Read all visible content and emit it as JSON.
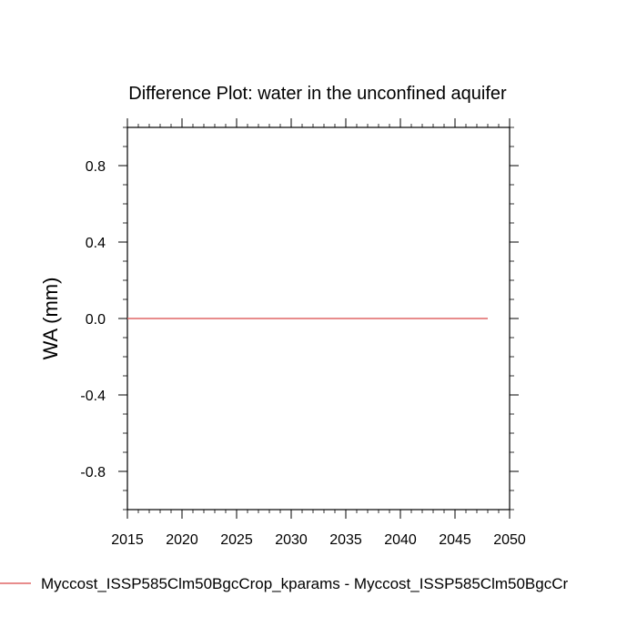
{
  "chart_data": {
    "type": "line",
    "title": "Difference Plot: water in the unconfined aquifer",
    "xlabel": "",
    "ylabel": "WA  (mm)",
    "xlim": [
      2015,
      2050
    ],
    "ylim": [
      -1.0,
      1.0
    ],
    "x_ticks": [
      2015,
      2020,
      2025,
      2030,
      2035,
      2040,
      2045,
      2050
    ],
    "y_ticks": [
      0.8,
      0.4,
      0.0,
      -0.4,
      -0.8
    ],
    "x_tick_labels": [
      "2015",
      "2020",
      "2025",
      "2030",
      "2035",
      "2040",
      "2045",
      "2050"
    ],
    "y_tick_labels": [
      "0.8",
      "0.4",
      "0.0",
      "-0.4",
      "-0.8"
    ],
    "grid": false,
    "legend_position": "bottom",
    "series": [
      {
        "name": "Myccost_ISSP585Clm50BgcCrop_kparams - Myccost_ISSP585Clm50BgcCr",
        "color": "#e06666",
        "x": [
          2015,
          2016,
          2017,
          2018,
          2019,
          2020,
          2021,
          2022,
          2023,
          2024,
          2025,
          2026,
          2027,
          2028,
          2029,
          2030,
          2031,
          2032,
          2033,
          2034,
          2035,
          2036,
          2037,
          2038,
          2039,
          2040,
          2041,
          2042,
          2043,
          2044,
          2045,
          2046,
          2047,
          2048
        ],
        "y": [
          0,
          0,
          0,
          0,
          0,
          0,
          0,
          0,
          0,
          0,
          0,
          0,
          0,
          0,
          0,
          0,
          0,
          0,
          0,
          0,
          0,
          0,
          0,
          0,
          0,
          0,
          0,
          0,
          0,
          0,
          0,
          0,
          0,
          0
        ]
      }
    ]
  }
}
